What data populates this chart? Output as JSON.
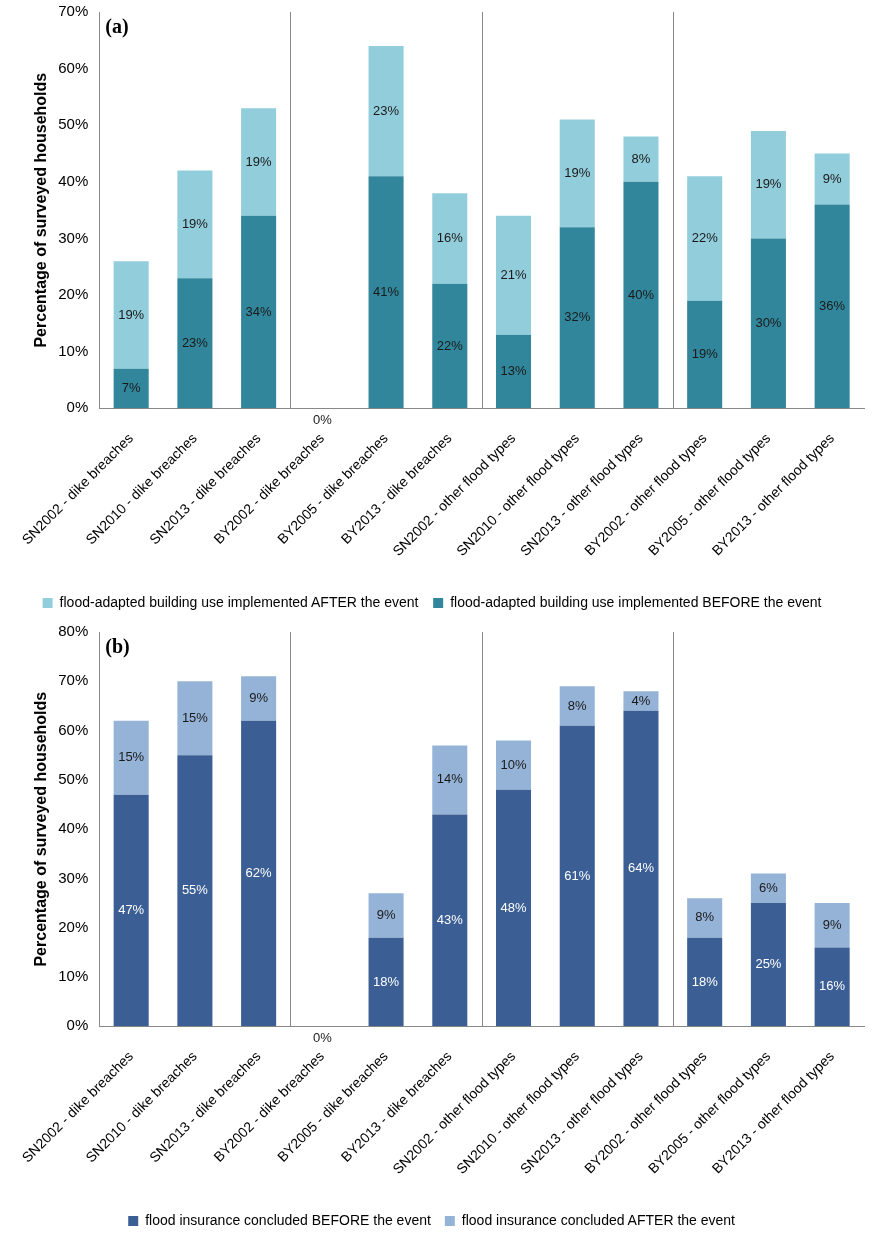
{
  "chart_data": [
    {
      "type": "bar",
      "title": "(a)",
      "ylabel": "Percentage of surveyed households",
      "stacked": true,
      "legend": "bottom",
      "grid": false,
      "categories": [
        "SN2002 - dike breaches",
        "SN2010 - dike breaches",
        "SN2013 - dike breaches",
        "BY2002 - dike breaches",
        "BY2005 - dike breaches",
        "BY2013 - dike breaches",
        "SN2002 - other flood types",
        "SN2010 - other flood types",
        "SN2013 - other flood types",
        "BY2002 - other flood types",
        "BY2005 - other flood types",
        "BY2013 - other flood types"
      ],
      "ylim": [
        0,
        70
      ],
      "yticks": [
        {
          "value": 0,
          "label": "0%"
        },
        {
          "value": 10,
          "label": "10%"
        },
        {
          "value": 20,
          "label": "20%"
        },
        {
          "value": 30,
          "label": "30%"
        },
        {
          "value": 40,
          "label": "40%"
        },
        {
          "value": 50,
          "label": "50%"
        },
        {
          "value": 60,
          "label": "60%"
        },
        {
          "value": 70,
          "label": "70%"
        }
      ],
      "series": [
        {
          "name": "flood-adapted building use implemented BEFORE the event",
          "color": "#31869b",
          "values": [
            7,
            23,
            34,
            0,
            41,
            22,
            13,
            32,
            40,
            19,
            30,
            36
          ],
          "value_labels": [
            "7%",
            "23%",
            "34%",
            "0%",
            "41%",
            "22%",
            "13%",
            "32%",
            "40%",
            "19%",
            "30%",
            "36%"
          ]
        },
        {
          "name": "flood-adapted building use implemented AFTER the event",
          "color": "#92cddc",
          "values": [
            19,
            19,
            19,
            0,
            23,
            16,
            21,
            19,
            8,
            22,
            19,
            9
          ],
          "value_labels": [
            "19%",
            "19%",
            "19%",
            null,
            "23%",
            "16%",
            "21%",
            "19%",
            "8%",
            "22%",
            "19%",
            "9%"
          ]
        }
      ]
    },
    {
      "type": "bar",
      "title": "(b)",
      "ylabel": "Percentage of surveyed households",
      "stacked": true,
      "legend": "bottom",
      "grid": false,
      "categories": [
        "SN2002 - dike breaches",
        "SN2010 - dike breaches",
        "SN2013 - dike breaches",
        "BY2002 - dike breaches",
        "BY2005 - dike breaches",
        "BY2013 - dike breaches",
        "SN2002 - other flood types",
        "SN2010 - other flood types",
        "SN2013 - other flood types",
        "BY2002 - other flood types",
        "BY2005 - other flood types",
        "BY2013 - other flood types"
      ],
      "ylim": [
        0,
        80
      ],
      "yticks": [
        {
          "value": 0,
          "label": "0%"
        },
        {
          "value": 10,
          "label": "10%"
        },
        {
          "value": 20,
          "label": "20%"
        },
        {
          "value": 30,
          "label": "30%"
        },
        {
          "value": 40,
          "label": "40%"
        },
        {
          "value": 50,
          "label": "50%"
        },
        {
          "value": 60,
          "label": "60%"
        },
        {
          "value": 70,
          "label": "70%"
        },
        {
          "value": 80,
          "label": "80%"
        }
      ],
      "series": [
        {
          "name": "flood insurance concluded BEFORE the event",
          "color": "#3b5f94",
          "values": [
            47,
            55,
            62,
            0,
            18,
            43,
            48,
            61,
            64,
            18,
            25,
            16
          ],
          "value_labels": [
            "47%",
            "55%",
            "62%",
            "0%",
            "18%",
            "43%",
            "48%",
            "61%",
            "64%",
            "18%",
            "25%",
            "16%"
          ]
        },
        {
          "name": "flood insurance concluded AFTER the event",
          "color": "#95b3d7",
          "values": [
            15,
            15,
            9,
            0,
            9,
            14,
            10,
            8,
            4,
            8,
            6,
            9
          ],
          "value_labels": [
            "15%",
            "15%",
            "9%",
            null,
            "9%",
            "14%",
            "10%",
            "8%",
            "4%",
            "8%",
            "6%",
            "9%"
          ]
        }
      ]
    }
  ]
}
